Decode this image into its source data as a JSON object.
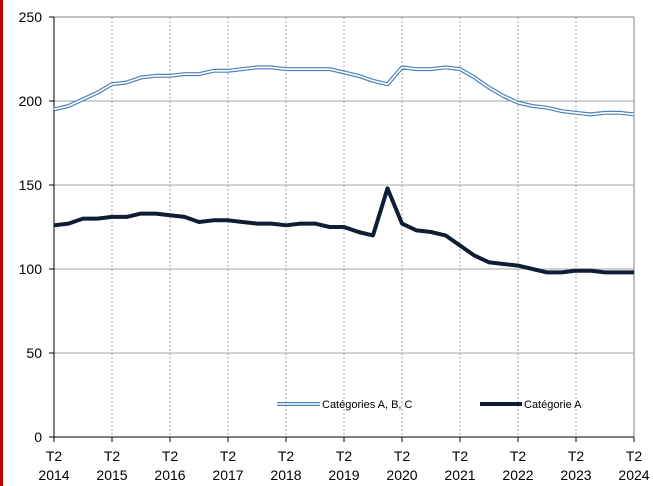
{
  "colors": {
    "series_ABC": "#4f81bd",
    "series_A": "#0f1e34",
    "grid": "#a6a6a6",
    "axis": "#000000",
    "left_rule": "#c00000"
  },
  "chart_data": {
    "type": "line",
    "title": "",
    "xlabel": "",
    "ylabel": "",
    "ylim": [
      0,
      250
    ],
    "yticks": [
      0,
      50,
      100,
      150,
      200,
      250
    ],
    "xlim": [
      2014.25,
      2024.25
    ],
    "xticks": [
      {
        "line1": "T2",
        "line2": "2014",
        "x": 2014.25
      },
      {
        "line1": "T2",
        "line2": "2015",
        "x": 2015.25
      },
      {
        "line1": "T2",
        "line2": "2016",
        "x": 2016.25
      },
      {
        "line1": "T2",
        "line2": "2017",
        "x": 2017.25
      },
      {
        "line1": "T2",
        "line2": "2018",
        "x": 2018.25
      },
      {
        "line1": "T2",
        "line2": "2019",
        "x": 2019.25
      },
      {
        "line1": "T2",
        "line2": "2020",
        "x": 2020.25
      },
      {
        "line1": "T2",
        "line2": "2021",
        "x": 2021.25
      },
      {
        "line1": "T2",
        "line2": "2022",
        "x": 2022.25
      },
      {
        "line1": "T2",
        "line2": "2023",
        "x": 2023.25
      },
      {
        "line1": "T2",
        "line2": "2024",
        "x": 2024.25
      }
    ],
    "grid": true,
    "legend_position": "bottom-right",
    "x": [
      2014.25,
      2014.5,
      2014.75,
      2015,
      2015.25,
      2015.5,
      2015.75,
      2016,
      2016.25,
      2016.5,
      2016.75,
      2017,
      2017.25,
      2017.5,
      2017.75,
      2018,
      2018.25,
      2018.5,
      2018.75,
      2019,
      2019.25,
      2019.5,
      2019.75,
      2020,
      2020.25,
      2020.5,
      2020.75,
      2021,
      2021.25,
      2021.5,
      2021.75,
      2022,
      2022.25,
      2022.5,
      2022.75,
      2023,
      2023.25,
      2023.5,
      2023.75,
      2024,
      2024.25
    ],
    "series": [
      {
        "name": "Catégories A, B, C",
        "style": "double",
        "values": [
          195,
          197,
          201,
          205,
          210,
          211,
          214,
          215,
          215,
          216,
          216,
          218,
          218,
          219,
          220,
          220,
          219,
          219,
          219,
          219,
          217,
          215,
          212,
          210,
          220,
          219,
          219,
          220,
          219,
          214,
          208,
          203,
          199,
          197,
          196,
          194,
          193,
          192,
          193,
          193,
          192
        ]
      },
      {
        "name": "Catégorie A",
        "style": "thick",
        "values": [
          126,
          127,
          130,
          130,
          131,
          131,
          133,
          133,
          132,
          131,
          128,
          129,
          129,
          128,
          127,
          127,
          126,
          127,
          127,
          125,
          125,
          122,
          120,
          148,
          127,
          123,
          122,
          120,
          114,
          108,
          104,
          103,
          102,
          100,
          98,
          98,
          99,
          99,
          98,
          98,
          98
        ]
      }
    ]
  }
}
